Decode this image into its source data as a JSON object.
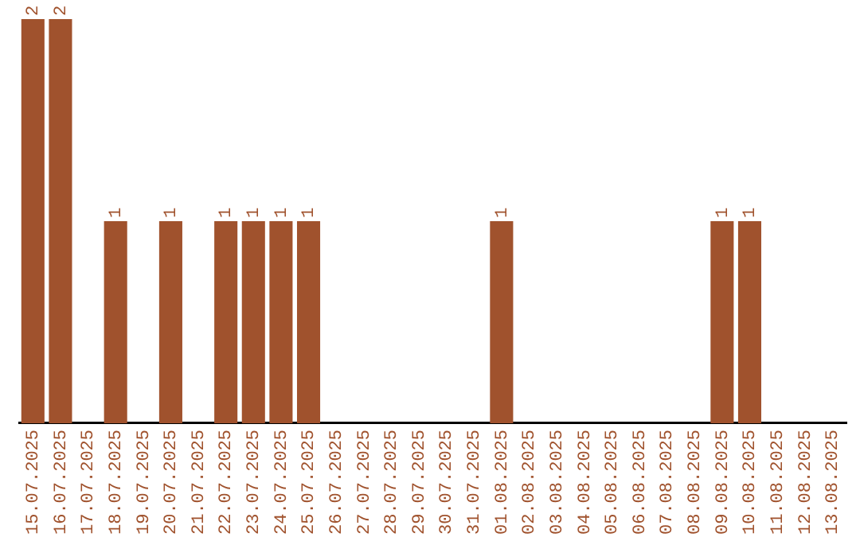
{
  "chart_data": {
    "type": "bar",
    "categories": [
      "15.07.2025",
      "16.07.2025",
      "17.07.2025",
      "18.07.2025",
      "19.07.2025",
      "20.07.2025",
      "21.07.2025",
      "22.07.2025",
      "23.07.2025",
      "24.07.2025",
      "25.07.2025",
      "26.07.2025",
      "27.07.2025",
      "28.07.2025",
      "29.07.2025",
      "30.07.2025",
      "31.07.2025",
      "01.08.2025",
      "02.08.2025",
      "03.08.2025",
      "04.08.2025",
      "05.08.2025",
      "06.08.2025",
      "07.08.2025",
      "08.08.2025",
      "09.08.2025",
      "10.08.2025",
      "11.08.2025",
      "12.08.2025",
      "13.08.2025"
    ],
    "values": [
      2,
      2,
      0,
      1,
      0,
      1,
      0,
      1,
      1,
      1,
      1,
      0,
      0,
      0,
      0,
      0,
      0,
      1,
      0,
      0,
      0,
      0,
      0,
      0,
      0,
      1,
      1,
      0,
      0,
      0
    ],
    "value_labels": [
      "2",
      "2",
      null,
      "1",
      null,
      "1",
      null,
      "1",
      "1",
      "1",
      "1",
      null,
      null,
      null,
      null,
      null,
      null,
      "1",
      null,
      null,
      null,
      null,
      null,
      null,
      null,
      "1",
      "1",
      null,
      null,
      null
    ],
    "color": "#a0522d",
    "grid": false,
    "legend": false,
    "tick_labels": "x"
  }
}
